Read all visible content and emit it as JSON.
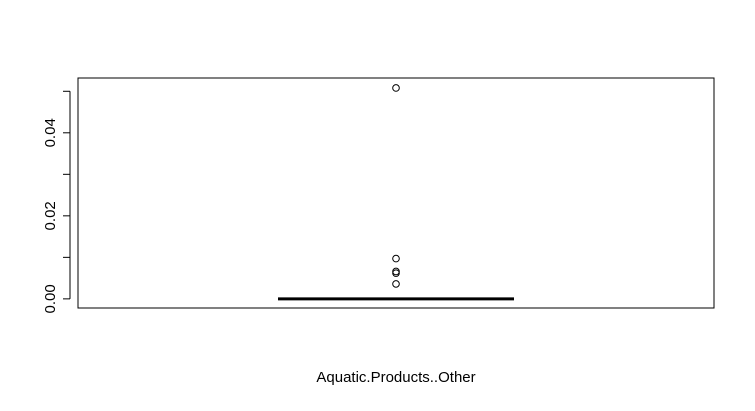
{
  "chart_data": {
    "type": "box",
    "title": "",
    "xlabel": "Aquatic.Products..Other",
    "ylabel": "",
    "ylim": [
      -0.0022,
      0.0532
    ],
    "y_ticks": [
      0.0,
      0.01,
      0.02,
      0.03,
      0.04,
      0.05
    ],
    "y_tick_labels": [
      "0.00",
      "",
      "0.02",
      "",
      "0.04",
      ""
    ],
    "grid": false,
    "series": [
      {
        "category": "Aquatic.Products..Other",
        "min": 0.0,
        "q1": 0.0,
        "median": 0.0,
        "q3": 0.0,
        "max": 0.0,
        "outliers": [
          0.0508,
          0.0097,
          0.0066,
          0.0062,
          0.0036
        ]
      }
    ]
  }
}
